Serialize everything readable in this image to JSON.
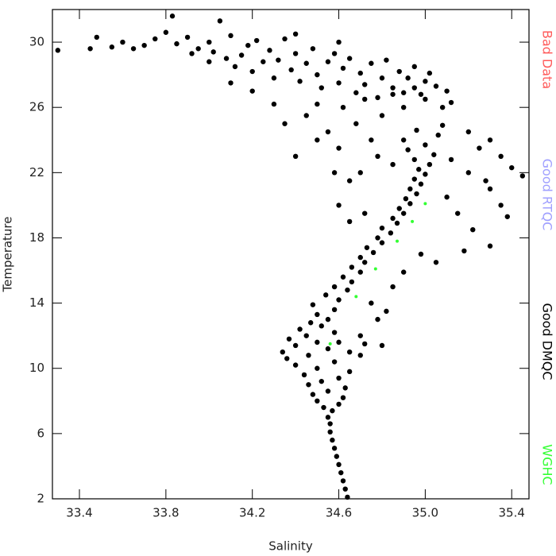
{
  "chart_data": {
    "type": "scatter",
    "x_label": "Salinity",
    "y_label": "Temperature",
    "xlim": [
      33.275,
      35.48
    ],
    "ylim": [
      2,
      32
    ],
    "xticks": [
      33.4,
      33.8,
      34.2,
      34.6,
      {
        "value": 35,
        "label": "35.0"
      },
      35.4
    ],
    "yticks": [
      2,
      6,
      10,
      14,
      18,
      22,
      26,
      30
    ],
    "series": [
      {
        "name": "Bad Data",
        "color": "#ff5a5a",
        "x": [],
        "y": []
      },
      {
        "name": "Good RTQC",
        "color": "#a0a0ff",
        "x": [],
        "y": []
      },
      {
        "name": "Good DMQC",
        "color": "#000000",
        "x": [
          34.64,
          34.63,
          34.62,
          34.61,
          34.6,
          34.59,
          34.58,
          34.57,
          34.56,
          34.56,
          34.55,
          34.57,
          34.53,
          34.6,
          34.5,
          34.62,
          34.48,
          34.55,
          34.63,
          34.46,
          34.52,
          34.6,
          34.44,
          34.65,
          34.5,
          34.4,
          34.58,
          34.36,
          34.46,
          34.34,
          34.55,
          34.4,
          34.5,
          34.37,
          34.45,
          34.58,
          34.42,
          34.52,
          34.47,
          34.55,
          34.5,
          34.58,
          34.48,
          34.6,
          34.54,
          34.64,
          34.58,
          34.66,
          34.62,
          34.7,
          34.66,
          34.72,
          34.7,
          34.76,
          34.73,
          34.8,
          34.78,
          34.84,
          34.8,
          34.87,
          34.85,
          34.9,
          34.88,
          34.93,
          34.91,
          34.96,
          34.93,
          34.98,
          34.95,
          35.0,
          34.97,
          35.02,
          34.95,
          35.04,
          34.92,
          35.0,
          34.9,
          35.06,
          34.96,
          35.08,
          35.2,
          35.3,
          35.4,
          35.45,
          35.35,
          35.38,
          35.25,
          35.3,
          35.15,
          35.1,
          35.22,
          35.18,
          35.3,
          35.05,
          34.98,
          34.9,
          35.2,
          35.35,
          35.28,
          35.12,
          34.72,
          34.8,
          34.7,
          34.78,
          34.65,
          34.85,
          34.82,
          34.75,
          34.7,
          34.6,
          34.7,
          34.65,
          34.78,
          34.6,
          34.75,
          34.85,
          34.68,
          34.8,
          34.9,
          34.55,
          34.72,
          34.62,
          35.0,
          35.08,
          35.1,
          35.12,
          34.95,
          34.85,
          34.5,
          34.45,
          33.3,
          33.45,
          33.48,
          33.55,
          33.6,
          33.65,
          33.7,
          33.75,
          33.8,
          33.83,
          33.85,
          33.9,
          33.92,
          33.95,
          34.0,
          34.0,
          34.02,
          34.05,
          34.08,
          34.1,
          34.12,
          34.15,
          34.18,
          34.2,
          34.22,
          34.25,
          34.28,
          34.3,
          34.32,
          34.35,
          34.38,
          34.4,
          34.42,
          34.45,
          34.48,
          34.5,
          34.52,
          34.55,
          34.58,
          34.6,
          34.62,
          34.65,
          34.68,
          34.7,
          34.72,
          34.75,
          34.78,
          34.8,
          34.82,
          34.85,
          34.88,
          34.9,
          34.92,
          34.95,
          34.98,
          35.0,
          35.02,
          35.05,
          34.4,
          34.6,
          34.3,
          34.2,
          34.1,
          34.35,
          34.5,
          34.4,
          34.58,
          34.65,
          34.6,
          34.72
        ],
        "y": [
          2.1,
          2.6,
          3.1,
          3.6,
          4.1,
          4.6,
          5.1,
          5.6,
          6.1,
          6.6,
          7.0,
          7.4,
          7.6,
          7.8,
          8.0,
          8.2,
          8.4,
          8.6,
          8.8,
          9.0,
          9.2,
          9.4,
          9.6,
          9.8,
          10.0,
          10.2,
          10.4,
          10.6,
          10.8,
          11.0,
          11.2,
          11.4,
          11.6,
          11.8,
          12.0,
          12.2,
          12.4,
          12.6,
          12.8,
          13.0,
          13.3,
          13.6,
          13.9,
          14.2,
          14.5,
          14.8,
          15.0,
          15.3,
          15.6,
          15.9,
          16.2,
          16.5,
          16.8,
          17.1,
          17.4,
          17.7,
          18.0,
          18.3,
          18.6,
          18.9,
          19.2,
          19.5,
          19.8,
          20.1,
          20.4,
          20.7,
          21.0,
          21.3,
          21.6,
          21.9,
          22.2,
          22.5,
          22.8,
          23.1,
          23.4,
          23.7,
          24.0,
          24.3,
          24.6,
          24.9,
          22.0,
          21.0,
          22.3,
          21.8,
          20.0,
          19.3,
          23.5,
          24.0,
          19.5,
          20.5,
          18.5,
          17.2,
          17.5,
          16.5,
          17.0,
          15.9,
          24.5,
          23.0,
          21.5,
          22.8,
          11.5,
          11.4,
          12.0,
          13.0,
          11.0,
          15.0,
          13.5,
          14.0,
          10.8,
          11.6,
          22.0,
          21.5,
          23.0,
          23.5,
          24.0,
          22.5,
          25.0,
          25.5,
          26.0,
          24.5,
          26.5,
          26.0,
          26.5,
          26.0,
          27.0,
          26.3,
          27.2,
          26.8,
          26.2,
          25.5,
          29.5,
          29.6,
          30.3,
          29.7,
          30.0,
          29.6,
          29.8,
          30.2,
          30.6,
          31.6,
          29.9,
          30.3,
          29.3,
          29.6,
          30.0,
          28.8,
          29.4,
          31.3,
          29.0,
          30.4,
          28.5,
          29.2,
          29.8,
          28.2,
          30.1,
          28.8,
          29.5,
          27.8,
          28.9,
          30.2,
          28.3,
          29.3,
          27.6,
          28.7,
          29.6,
          28.0,
          27.2,
          28.8,
          29.3,
          27.5,
          28.4,
          29.0,
          26.9,
          28.1,
          27.4,
          28.7,
          26.6,
          27.8,
          28.9,
          27.2,
          28.2,
          26.9,
          27.8,
          28.5,
          26.8,
          27.6,
          28.1,
          27.3,
          30.5,
          30.0,
          26.2,
          27.0,
          27.5,
          25.0,
          24.0,
          23.0,
          22.0,
          19.0,
          20.0,
          19.5
        ]
      },
      {
        "name": "WGHC",
        "color": "#33ff33",
        "x": [
          35.0,
          34.94,
          34.87,
          34.77,
          34.68,
          34.56
        ],
        "y": [
          20.1,
          19.0,
          17.8,
          16.1,
          14.4,
          11.5
        ]
      }
    ]
  }
}
